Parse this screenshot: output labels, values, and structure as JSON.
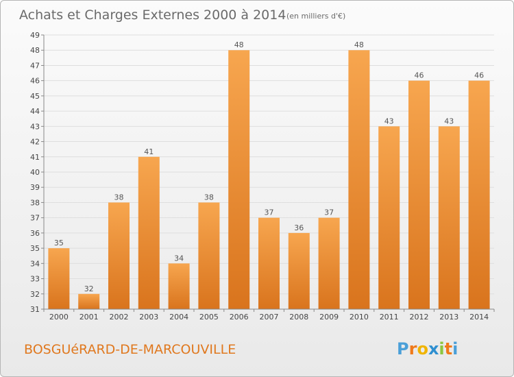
{
  "chart_data": {
    "type": "bar",
    "title": "Achats et Charges Externes 2000 à 2014",
    "subtitle": "(en milliers d'€)",
    "categories": [
      "2000",
      "2001",
      "2002",
      "2003",
      "2004",
      "2005",
      "2006",
      "2007",
      "2008",
      "2009",
      "2010",
      "2011",
      "2012",
      "2013",
      "2014"
    ],
    "values": [
      35,
      32,
      38,
      41,
      34,
      38,
      48,
      37,
      36,
      37,
      48,
      43,
      46,
      43,
      46
    ],
    "ylim": [
      31,
      49
    ],
    "yticks": [
      31,
      32,
      33,
      34,
      35,
      36,
      37,
      38,
      39,
      40,
      41,
      42,
      43,
      44,
      45,
      46,
      47,
      48,
      49
    ],
    "xlabel": "",
    "ylabel": "",
    "grid": true,
    "bar_color_top": "#f7a64f",
    "bar_color_bottom": "#d9741d",
    "show_value_labels": true
  },
  "commune": "BOSGUéRARD-DE-MARCOUVILLE",
  "logo": {
    "letters": [
      "P",
      "r",
      "o",
      "x",
      "i",
      "t",
      "i"
    ],
    "colors": [
      "#4a9fd8",
      "#f07a1a",
      "#f0b400",
      "#2e8fd0",
      "#8cc63f",
      "#f07a1a",
      "#4a9fd8"
    ]
  }
}
